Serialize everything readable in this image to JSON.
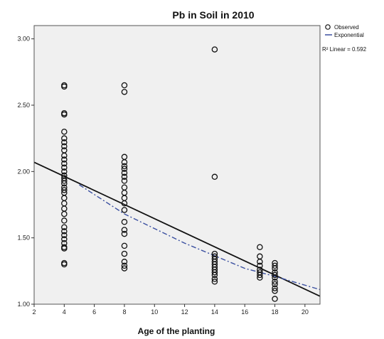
{
  "chart_data": {
    "type": "scatter",
    "title": "Pb in Soil in 2010",
    "xlabel": "Age of the planting",
    "ylabel": "",
    "xlim": [
      2,
      21
    ],
    "ylim": [
      1.0,
      3.1
    ],
    "x_ticks": [
      "2",
      "4",
      "6",
      "8",
      "10",
      "12",
      "14",
      "16",
      "18",
      "20"
    ],
    "y_ticks": [
      "1.00",
      "1.50",
      "2.00",
      "2.50",
      "3.00"
    ],
    "grid": false,
    "legend_position": "top-right",
    "legend": {
      "observed": "Observed",
      "exponential": "Exponential",
      "linear": "R² Linear = 0.592"
    },
    "series": [
      {
        "name": "Observed",
        "style": "hollow-circle",
        "points": [
          [
            4,
            2.65
          ],
          [
            4,
            2.64
          ],
          [
            4,
            2.44
          ],
          [
            4,
            2.43
          ],
          [
            4,
            2.3
          ],
          [
            4,
            2.25
          ],
          [
            4,
            2.22
          ],
          [
            4,
            2.19
          ],
          [
            4,
            2.16
          ],
          [
            4,
            2.12
          ],
          [
            4,
            2.09
          ],
          [
            4,
            2.06
          ],
          [
            4,
            2.03
          ],
          [
            4,
            2.0
          ],
          [
            4,
            1.97
          ],
          [
            4,
            1.95
          ],
          [
            4,
            1.93
          ],
          [
            4,
            1.91
          ],
          [
            4,
            1.88
          ],
          [
            4,
            1.86
          ],
          [
            4,
            1.84
          ],
          [
            4,
            1.8
          ],
          [
            4,
            1.76
          ],
          [
            4,
            1.72
          ],
          [
            4,
            1.68
          ],
          [
            4,
            1.63
          ],
          [
            4,
            1.58
          ],
          [
            4,
            1.55
          ],
          [
            4,
            1.52
          ],
          [
            4,
            1.49
          ],
          [
            4,
            1.46
          ],
          [
            4,
            1.43
          ],
          [
            4,
            1.42
          ],
          [
            4,
            1.31
          ],
          [
            4,
            1.3
          ],
          [
            8,
            2.65
          ],
          [
            8,
            2.6
          ],
          [
            8,
            2.11
          ],
          [
            8,
            2.07
          ],
          [
            8,
            2.04
          ],
          [
            8,
            2.02
          ],
          [
            8,
            1.99
          ],
          [
            8,
            1.96
          ],
          [
            8,
            1.93
          ],
          [
            8,
            1.88
          ],
          [
            8,
            1.84
          ],
          [
            8,
            1.8
          ],
          [
            8,
            1.76
          ],
          [
            8,
            1.71
          ],
          [
            8,
            1.62
          ],
          [
            8,
            1.56
          ],
          [
            8,
            1.53
          ],
          [
            8,
            1.44
          ],
          [
            8,
            1.38
          ],
          [
            8,
            1.32
          ],
          [
            8,
            1.29
          ],
          [
            8,
            1.27
          ],
          [
            14,
            2.92
          ],
          [
            14,
            1.96
          ],
          [
            14,
            1.38
          ],
          [
            14,
            1.36
          ],
          [
            14,
            1.34
          ],
          [
            14,
            1.32
          ],
          [
            14,
            1.3
          ],
          [
            14,
            1.28
          ],
          [
            14,
            1.26
          ],
          [
            14,
            1.24
          ],
          [
            14,
            1.22
          ],
          [
            14,
            1.19
          ],
          [
            14,
            1.17
          ],
          [
            17,
            1.43
          ],
          [
            17,
            1.36
          ],
          [
            17,
            1.32
          ],
          [
            17,
            1.29
          ],
          [
            17,
            1.26
          ],
          [
            17,
            1.24
          ],
          [
            17,
            1.22
          ],
          [
            17,
            1.2
          ],
          [
            18,
            1.31
          ],
          [
            18,
            1.29
          ],
          [
            18,
            1.27
          ],
          [
            18,
            1.24
          ],
          [
            18,
            1.22
          ],
          [
            18,
            1.2
          ],
          [
            18,
            1.17
          ],
          [
            18,
            1.15
          ],
          [
            18,
            1.12
          ],
          [
            18,
            1.1
          ],
          [
            18,
            1.04
          ]
        ]
      },
      {
        "name": "Exponential",
        "style": "dash-dot",
        "color": "#3a4fa0",
        "points": [
          [
            5,
            1.9
          ],
          [
            8,
            1.68
          ],
          [
            12,
            1.46
          ],
          [
            16,
            1.27
          ],
          [
            18,
            1.21
          ],
          [
            21,
            1.11
          ]
        ]
      },
      {
        "name": "Linear",
        "style": "solid",
        "color": "#111111",
        "points": [
          [
            2,
            2.07
          ],
          [
            21,
            1.06
          ]
        ]
      }
    ]
  }
}
